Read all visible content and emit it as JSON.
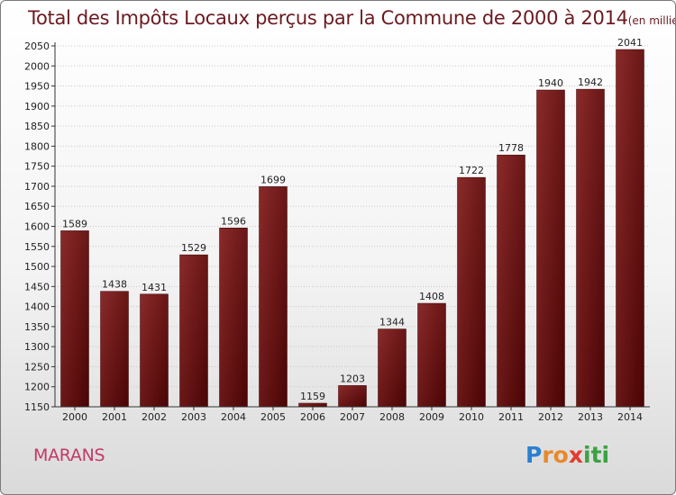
{
  "title": "Total des Impôts Locaux perçus par la Commune de 2000 à 2014",
  "unit": "(en milliers d'€)",
  "commune": "MARANS",
  "logo": {
    "letters": [
      "P",
      "r",
      "o",
      "x",
      "i",
      "t",
      "i"
    ],
    "colors": [
      "#2c7fd0",
      "#e8892a",
      "#e8892a",
      "#e23b2e",
      "#3aa241",
      "#3aa241",
      "#3aa241"
    ]
  },
  "colors": {
    "bar": "#7a1818",
    "bar_dark": "#4a0505",
    "title": "#6b1a20",
    "commune": "#c23a68"
  },
  "chart_data": {
    "type": "bar",
    "title": "Total des Impôts Locaux perçus par la Commune de 2000 à 2014",
    "categories": [
      "2000",
      "2001",
      "2002",
      "2003",
      "2004",
      "2005",
      "2006",
      "2007",
      "2008",
      "2009",
      "2010",
      "2011",
      "2012",
      "2013",
      "2014"
    ],
    "values": [
      1589,
      1438,
      1431,
      1529,
      1596,
      1699,
      1159,
      1203,
      1344,
      1408,
      1722,
      1778,
      1940,
      1942,
      2041
    ],
    "ylim": [
      1150,
      2050
    ],
    "yticks": [
      1150,
      1200,
      1250,
      1300,
      1350,
      1400,
      1450,
      1500,
      1550,
      1600,
      1650,
      1700,
      1750,
      1800,
      1850,
      1900,
      1950,
      2000,
      2050
    ],
    "xlabel": "",
    "ylabel": ""
  }
}
